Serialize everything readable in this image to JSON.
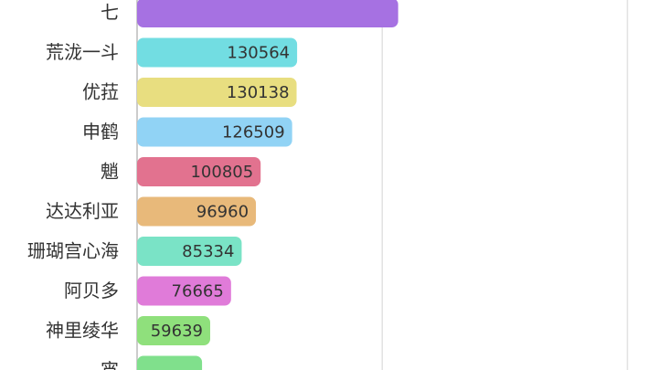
{
  "chart_data": {
    "type": "bar",
    "orientation": "horizontal",
    "categories": [
      "七",
      "荒泷一斗",
      "优菈",
      "申鹤",
      "魈",
      "达达利亚",
      "珊瑚宫心海",
      "阿贝多",
      "神里绫华",
      "宵"
    ],
    "values": [
      213000,
      130564,
      130138,
      126509,
      100805,
      96960,
      85334,
      76665,
      59639,
      53000
    ],
    "value_labels": [
      null,
      "130564",
      "130138",
      "126509",
      "100805",
      "96960",
      "85334",
      "76665",
      "59639",
      null
    ],
    "colors": [
      "#a671e2",
      "#72dde2",
      "#e8de80",
      "#91d3f5",
      "#e2728f",
      "#e8b97a",
      "#7ae3c6",
      "#e07bd9",
      "#8fe07c",
      "#80e08c"
    ],
    "xlim": [
      0,
      425000
    ],
    "xticks": [
      0,
      200000,
      400000
    ],
    "grid": true
  }
}
